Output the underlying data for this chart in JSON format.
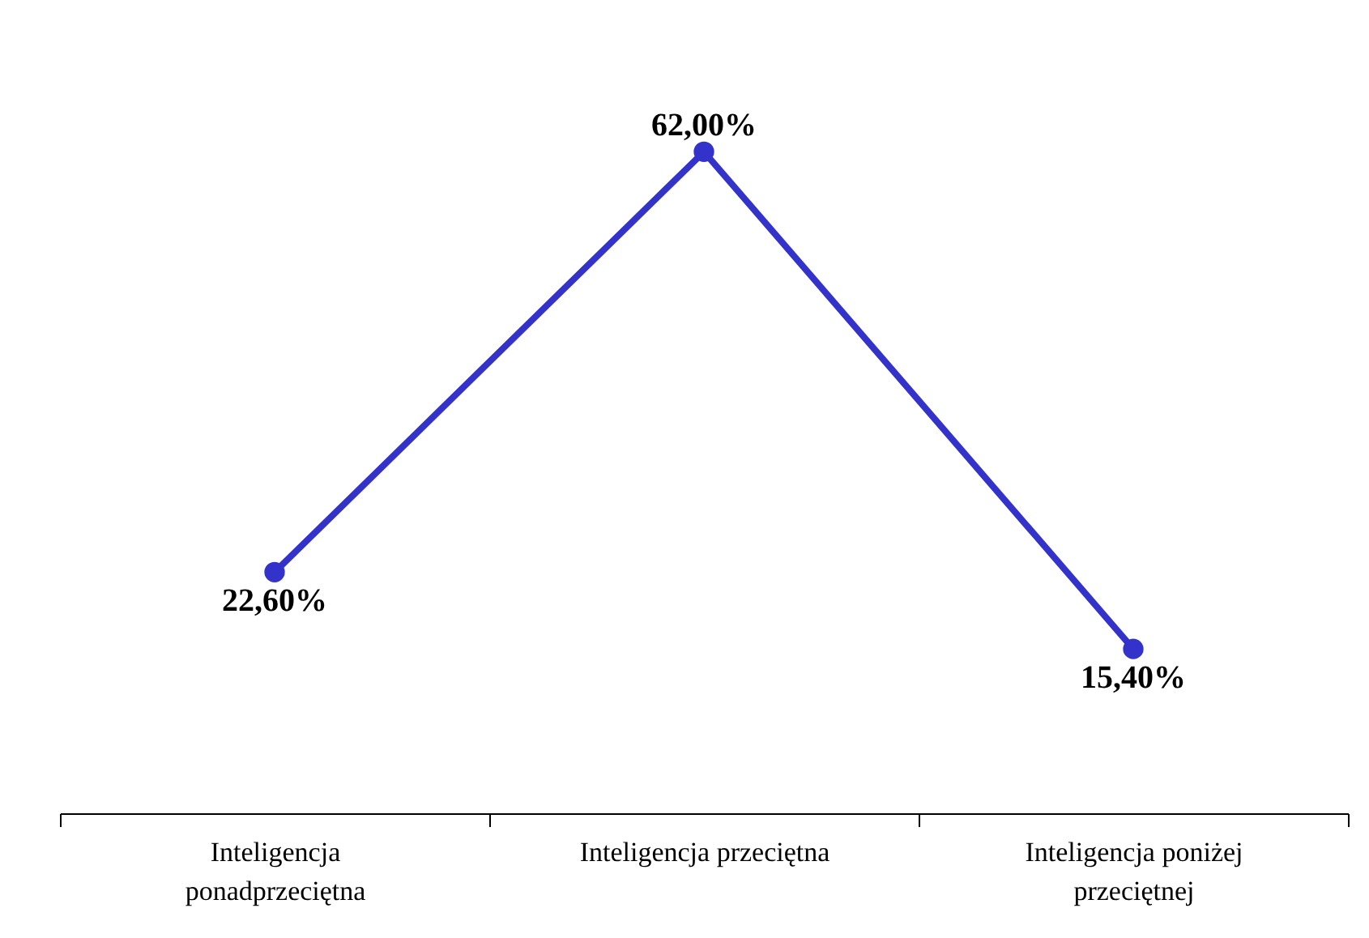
{
  "chart_data": {
    "type": "line",
    "categories": [
      "Inteligencja ponadprzeciętna",
      "Inteligencja przeciętna",
      "Inteligencja poniżej przeciętnej"
    ],
    "series": [
      {
        "color": "#3333cc",
        "values": [
          22.6,
          62.0,
          15.4
        ],
        "value_labels": [
          "22,60%",
          "62,00%",
          "15,40%"
        ]
      }
    ],
    "tick_labels": "x",
    "grid": false,
    "marker": "circle",
    "line_style": "solid"
  }
}
